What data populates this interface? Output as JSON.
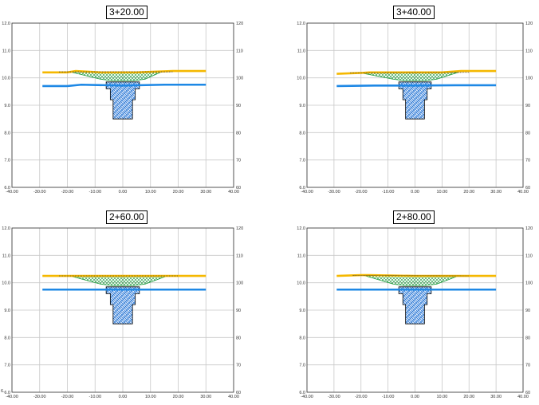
{
  "panels": [
    {
      "title": "3+20.00"
    },
    {
      "title": "3+40.00"
    },
    {
      "title": "2+60.00"
    },
    {
      "title": "2+80.00"
    }
  ],
  "axes": {
    "x_ticks": [
      "-40.00",
      "-30.00",
      "-20.00",
      "-10.00",
      "0.00",
      "10.00",
      "20.00",
      "30.00",
      "40.00"
    ],
    "y_ticks_left": [
      "6.0",
      "7.0",
      "8.0",
      "9.0",
      "10.0",
      "11.0",
      "12.0"
    ],
    "y_ticks_right": [
      "60",
      "70",
      "80",
      "90",
      "100",
      "110",
      "120"
    ],
    "x_range": [
      -40,
      40
    ],
    "y_range": [
      6,
      12
    ]
  },
  "colors": {
    "grid": "#c8c8c8",
    "frame": "#333333",
    "ground_line": "#f5b800",
    "water_line": "#1e88e5",
    "fill_zone": "#1a9a3a",
    "excavation": "#1e6fd0"
  },
  "corner_mark": "6."
}
